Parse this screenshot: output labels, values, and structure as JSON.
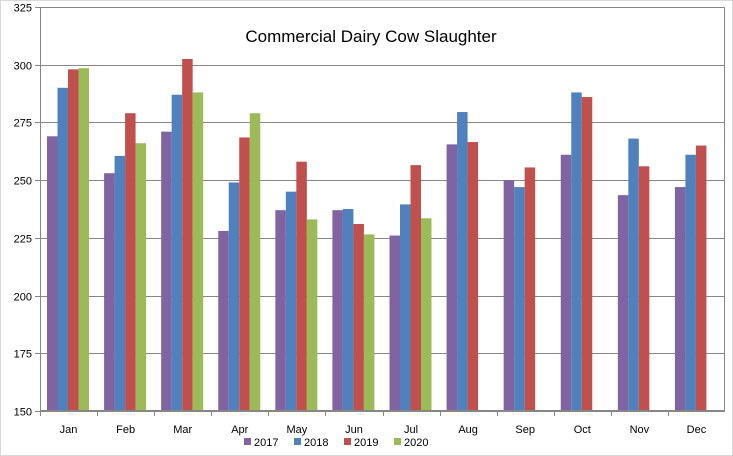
{
  "chart_data": {
    "type": "bar",
    "title": "Commercial Dairy Cow Slaughter",
    "xlabel": "",
    "ylabel": "",
    "ylim": [
      150,
      325
    ],
    "yticks": [
      150,
      175,
      200,
      225,
      250,
      275,
      300,
      325
    ],
    "grid": true,
    "legend_position": "bottom",
    "categories": [
      "Jan",
      "Feb",
      "Mar",
      "Apr",
      "May",
      "Jun",
      "Jul",
      "Aug",
      "Sep",
      "Oct",
      "Nov",
      "Dec"
    ],
    "series": [
      {
        "name": "2017",
        "color": "#8064A2",
        "values": [
          269,
          253,
          271,
          228,
          237,
          237,
          226,
          265.5,
          250,
          261,
          243.5,
          247
        ]
      },
      {
        "name": "2018",
        "color": "#4F81BD",
        "values": [
          290,
          260.5,
          287,
          249,
          245,
          237.5,
          239.5,
          279.5,
          247,
          288,
          268,
          261
        ]
      },
      {
        "name": "2019",
        "color": "#C0504D",
        "values": [
          298,
          279,
          302.5,
          268.5,
          258,
          231,
          256.5,
          266.5,
          255.5,
          286,
          256,
          265
        ]
      },
      {
        "name": "2020",
        "color": "#9BBB59",
        "values": [
          298.5,
          266,
          288,
          279,
          233,
          226.5,
          233.5,
          null,
          null,
          null,
          null,
          null
        ]
      }
    ]
  }
}
